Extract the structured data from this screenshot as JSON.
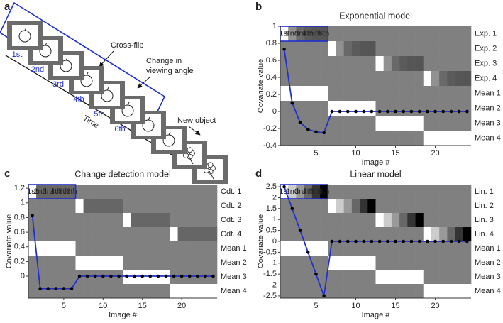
{
  "panel_a": {
    "letter": "a",
    "frame_labels": [
      "1st",
      "2nd",
      "3rd",
      "4th",
      "5th",
      "6th"
    ],
    "cross_flip": "Cross-flip",
    "change_angle": [
      "Change in",
      "viewing angle"
    ],
    "new_object": "New object",
    "time": "Time"
  },
  "chart_data": [
    {
      "type": "heatmap",
      "panel": "b",
      "title": "Exponential model",
      "xlabel": "Image #",
      "ylabel": "Covariate value",
      "x": [
        1,
        2,
        3,
        4,
        5,
        6,
        7,
        8,
        9,
        10,
        11,
        12,
        13,
        14,
        15,
        16,
        17,
        18,
        19,
        20,
        21,
        22,
        23,
        24
      ],
      "xlim": [
        0.5,
        24.5
      ],
      "xticks": [
        5,
        10,
        15,
        20
      ],
      "ylim": [
        -0.4,
        1.0
      ],
      "yticks": [
        -0.4,
        -0.2,
        0,
        0.2,
        0.4,
        0.6,
        0.8,
        1
      ],
      "box_labels": [
        "1st",
        "2nd",
        "3rd",
        "4th",
        "5th",
        "6th"
      ],
      "box_color": "#1f2fd0",
      "line": {
        "color": "#1f2fd0",
        "marker_color": "#000000",
        "values": [
          0.73,
          0.1,
          -0.13,
          -0.21,
          -0.24,
          -0.25,
          0,
          0,
          0,
          0,
          0,
          0,
          0,
          0,
          0,
          0,
          0,
          0,
          0,
          0,
          0,
          0,
          0,
          0
        ]
      },
      "rows": [
        {
          "name": "Exp. 1",
          "values": [
            0.73,
            0.1,
            -0.13,
            -0.21,
            -0.24,
            -0.25,
            0,
            0,
            0,
            0,
            0,
            0,
            0,
            0,
            0,
            0,
            0,
            0,
            0,
            0,
            0,
            0,
            0,
            0
          ]
        },
        {
          "name": "Exp. 2",
          "values": [
            0,
            0,
            0,
            0,
            0,
            0,
            0.73,
            0.1,
            -0.13,
            -0.21,
            -0.24,
            -0.25,
            0,
            0,
            0,
            0,
            0,
            0,
            0,
            0,
            0,
            0,
            0,
            0
          ]
        },
        {
          "name": "Exp. 3",
          "values": [
            0,
            0,
            0,
            0,
            0,
            0,
            0,
            0,
            0,
            0,
            0,
            0,
            0.73,
            0.1,
            -0.13,
            -0.21,
            -0.24,
            -0.25,
            0,
            0,
            0,
            0,
            0,
            0
          ]
        },
        {
          "name": "Exp. 4",
          "values": [
            0,
            0,
            0,
            0,
            0,
            0,
            0,
            0,
            0,
            0,
            0,
            0,
            0,
            0,
            0,
            0,
            0,
            0,
            0.73,
            0.1,
            -0.13,
            -0.21,
            -0.24,
            -0.25
          ]
        },
        {
          "name": "Mean 1",
          "values": [
            1,
            1,
            1,
            1,
            1,
            1,
            0,
            0,
            0,
            0,
            0,
            0,
            0,
            0,
            0,
            0,
            0,
            0,
            0,
            0,
            0,
            0,
            0,
            0
          ]
        },
        {
          "name": "Mean 2",
          "values": [
            0,
            0,
            0,
            0,
            0,
            0,
            1,
            1,
            1,
            1,
            1,
            1,
            0,
            0,
            0,
            0,
            0,
            0,
            0,
            0,
            0,
            0,
            0,
            0
          ]
        },
        {
          "name": "Mean 3",
          "values": [
            0,
            0,
            0,
            0,
            0,
            0,
            0,
            0,
            0,
            0,
            0,
            0,
            1,
            1,
            1,
            1,
            1,
            1,
            0,
            0,
            0,
            0,
            0,
            0
          ]
        },
        {
          "name": "Mean 4",
          "values": [
            0,
            0,
            0,
            0,
            0,
            0,
            0,
            0,
            0,
            0,
            0,
            0,
            0,
            0,
            0,
            0,
            0,
            0,
            1,
            1,
            1,
            1,
            1,
            1
          ]
        }
      ]
    },
    {
      "type": "heatmap",
      "panel": "c",
      "title": "Change detection model",
      "xlabel": "Image #",
      "ylabel": "Covariate value",
      "x": [
        1,
        2,
        3,
        4,
        5,
        6,
        7,
        8,
        9,
        10,
        11,
        12,
        13,
        14,
        15,
        16,
        17,
        18,
        19,
        20,
        21,
        22,
        23,
        24
      ],
      "xlim": [
        0.5,
        24.5
      ],
      "xticks": [
        5,
        10,
        15,
        20
      ],
      "ylim": [
        -0.3,
        1.25
      ],
      "yticks": [
        0,
        0.2,
        0.4,
        0.6,
        0.8,
        1,
        1.2
      ],
      "box_labels": [
        "1st",
        "2nd",
        "3rd",
        "4th",
        "5th",
        "6th"
      ],
      "box_color": "#1f2fd0",
      "line": {
        "color": "#1f2fd0",
        "marker_color": "#000000",
        "values": [
          0.83,
          -0.17,
          -0.17,
          -0.17,
          -0.17,
          -0.17,
          0,
          0,
          0,
          0,
          0,
          0,
          0,
          0,
          0,
          0,
          0,
          0,
          0,
          0,
          0,
          0,
          0,
          0
        ]
      },
      "rows": [
        {
          "name": "Cdt. 1",
          "values": [
            0.83,
            -0.17,
            -0.17,
            -0.17,
            -0.17,
            -0.17,
            0,
            0,
            0,
            0,
            0,
            0,
            0,
            0,
            0,
            0,
            0,
            0,
            0,
            0,
            0,
            0,
            0,
            0
          ]
        },
        {
          "name": "Cdt. 2",
          "values": [
            0,
            0,
            0,
            0,
            0,
            0,
            0.83,
            -0.17,
            -0.17,
            -0.17,
            -0.17,
            -0.17,
            0,
            0,
            0,
            0,
            0,
            0,
            0,
            0,
            0,
            0,
            0,
            0
          ]
        },
        {
          "name": "Cdt. 3",
          "values": [
            0,
            0,
            0,
            0,
            0,
            0,
            0,
            0,
            0,
            0,
            0,
            0,
            0.83,
            -0.17,
            -0.17,
            -0.17,
            -0.17,
            -0.17,
            0,
            0,
            0,
            0,
            0,
            0
          ]
        },
        {
          "name": "Cdt. 4",
          "values": [
            0,
            0,
            0,
            0,
            0,
            0,
            0,
            0,
            0,
            0,
            0,
            0,
            0,
            0,
            0,
            0,
            0,
            0,
            0.83,
            -0.17,
            -0.17,
            -0.17,
            -0.17,
            -0.17
          ]
        },
        {
          "name": "Mean 1",
          "values": [
            1,
            1,
            1,
            1,
            1,
            1,
            0,
            0,
            0,
            0,
            0,
            0,
            0,
            0,
            0,
            0,
            0,
            0,
            0,
            0,
            0,
            0,
            0,
            0
          ]
        },
        {
          "name": "Mean 2",
          "values": [
            0,
            0,
            0,
            0,
            0,
            0,
            1,
            1,
            1,
            1,
            1,
            1,
            0,
            0,
            0,
            0,
            0,
            0,
            0,
            0,
            0,
            0,
            0,
            0
          ]
        },
        {
          "name": "Mean 3",
          "values": [
            0,
            0,
            0,
            0,
            0,
            0,
            0,
            0,
            0,
            0,
            0,
            0,
            1,
            1,
            1,
            1,
            1,
            1,
            0,
            0,
            0,
            0,
            0,
            0
          ]
        },
        {
          "name": "Mean 4",
          "values": [
            0,
            0,
            0,
            0,
            0,
            0,
            0,
            0,
            0,
            0,
            0,
            0,
            0,
            0,
            0,
            0,
            0,
            0,
            1,
            1,
            1,
            1,
            1,
            1
          ]
        }
      ]
    },
    {
      "type": "heatmap",
      "panel": "d",
      "title": "Linear model",
      "xlabel": "Image #",
      "ylabel": "Covariate value",
      "x": [
        1,
        2,
        3,
        4,
        5,
        6,
        7,
        8,
        9,
        10,
        11,
        12,
        13,
        14,
        15,
        16,
        17,
        18,
        19,
        20,
        21,
        22,
        23,
        24
      ],
      "xlim": [
        0.5,
        24.5
      ],
      "xticks": [
        5,
        10,
        15,
        20
      ],
      "ylim": [
        -2.6,
        2.6
      ],
      "yticks": [
        -2.5,
        -2,
        -1.5,
        -1,
        -0.5,
        0,
        0.5,
        1,
        1.5,
        2,
        2.5
      ],
      "box_labels": [
        "1st",
        "2nd",
        "3rd",
        "4th",
        "5th",
        "6th"
      ],
      "box_color": "#1f2fd0",
      "line": {
        "color": "#1f2fd0",
        "marker_color": "#000000",
        "values": [
          2.5,
          1.5,
          0.5,
          -0.5,
          -1.5,
          -2.5,
          0,
          0,
          0,
          0,
          0,
          0,
          0,
          0,
          0,
          0,
          0,
          0,
          0,
          0,
          0,
          0,
          0,
          0
        ]
      },
      "rows": [
        {
          "name": "Lin. 1",
          "values": [
            2.5,
            1.5,
            0.5,
            -0.5,
            -1.5,
            -2.5,
            0,
            0,
            0,
            0,
            0,
            0,
            0,
            0,
            0,
            0,
            0,
            0,
            0,
            0,
            0,
            0,
            0,
            0
          ]
        },
        {
          "name": "Lin. 2",
          "values": [
            0,
            0,
            0,
            0,
            0,
            0,
            2.5,
            1.5,
            0.5,
            -0.5,
            -1.5,
            -2.5,
            0,
            0,
            0,
            0,
            0,
            0,
            0,
            0,
            0,
            0,
            0,
            0
          ]
        },
        {
          "name": "Lin. 3",
          "values": [
            0,
            0,
            0,
            0,
            0,
            0,
            0,
            0,
            0,
            0,
            0,
            0,
            2.5,
            1.5,
            0.5,
            -0.5,
            -1.5,
            -2.5,
            0,
            0,
            0,
            0,
            0,
            0
          ]
        },
        {
          "name": "Lin. 4",
          "values": [
            0,
            0,
            0,
            0,
            0,
            0,
            0,
            0,
            0,
            0,
            0,
            0,
            0,
            0,
            0,
            0,
            0,
            0,
            2.5,
            1.5,
            0.5,
            -0.5,
            -1.5,
            -2.5
          ]
        },
        {
          "name": "Mean 1",
          "values": [
            1,
            1,
            1,
            1,
            1,
            1,
            0,
            0,
            0,
            0,
            0,
            0,
            0,
            0,
            0,
            0,
            0,
            0,
            0,
            0,
            0,
            0,
            0,
            0
          ]
        },
        {
          "name": "Mean 2",
          "values": [
            0,
            0,
            0,
            0,
            0,
            0,
            1,
            1,
            1,
            1,
            1,
            1,
            0,
            0,
            0,
            0,
            0,
            0,
            0,
            0,
            0,
            0,
            0,
            0
          ]
        },
        {
          "name": "Mean 3",
          "values": [
            0,
            0,
            0,
            0,
            0,
            0,
            0,
            0,
            0,
            0,
            0,
            0,
            1,
            1,
            1,
            1,
            1,
            1,
            0,
            0,
            0,
            0,
            0,
            0
          ]
        },
        {
          "name": "Mean 4",
          "values": [
            0,
            0,
            0,
            0,
            0,
            0,
            0,
            0,
            0,
            0,
            0,
            0,
            0,
            0,
            0,
            0,
            0,
            0,
            1,
            1,
            1,
            1,
            1,
            1
          ]
        }
      ]
    }
  ]
}
